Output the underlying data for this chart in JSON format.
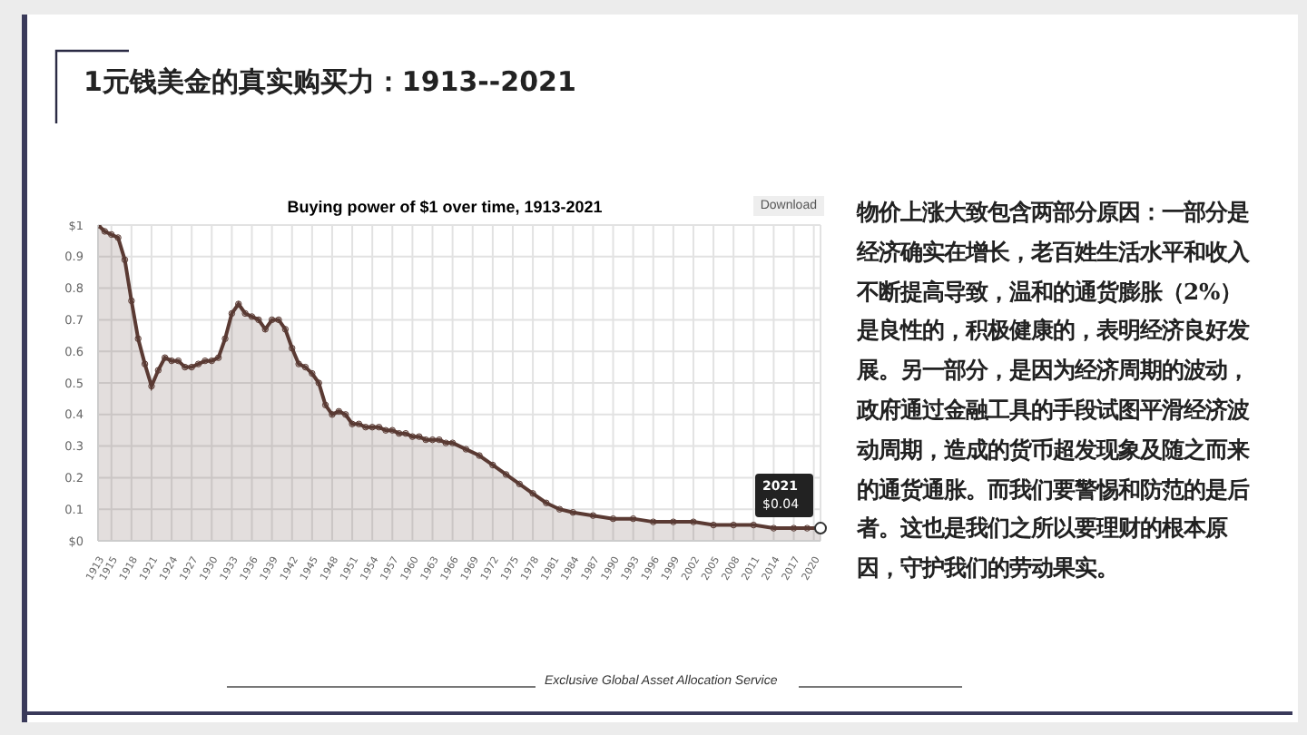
{
  "chart_data": {
    "type": "area",
    "title": "1元钱美金的真实购买力：1913--2021",
    "subtitle": "Buying power of $1 over time, 1913-2021",
    "x": [
      1913,
      1914,
      1915,
      1916,
      1917,
      1918,
      1919,
      1920,
      1921,
      1922,
      1923,
      1924,
      1925,
      1926,
      1927,
      1928,
      1929,
      1930,
      1931,
      1932,
      1933,
      1934,
      1935,
      1936,
      1937,
      1938,
      1939,
      1940,
      1941,
      1942,
      1943,
      1944,
      1945,
      1946,
      1947,
      1948,
      1949,
      1950,
      1951,
      1952,
      1953,
      1954,
      1955,
      1956,
      1957,
      1958,
      1959,
      1960,
      1961,
      1962,
      1963,
      1964,
      1965,
      1966,
      1968,
      1970,
      1972,
      1974,
      1976,
      1978,
      1980,
      1982,
      1984,
      1987,
      1990,
      1993,
      1996,
      1999,
      2002,
      2005,
      2008,
      2011,
      2014,
      2017,
      2019,
      2021
    ],
    "series": [
      {
        "color": "#5a3a33",
        "values": [
          1.0,
          0.98,
          0.97,
          0.96,
          0.89,
          0.76,
          0.64,
          0.56,
          0.49,
          0.54,
          0.58,
          0.57,
          0.57,
          0.55,
          0.55,
          0.56,
          0.57,
          0.57,
          0.58,
          0.64,
          0.72,
          0.75,
          0.72,
          0.71,
          0.7,
          0.67,
          0.7,
          0.7,
          0.67,
          0.61,
          0.56,
          0.55,
          0.53,
          0.5,
          0.43,
          0.4,
          0.41,
          0.4,
          0.37,
          0.37,
          0.36,
          0.36,
          0.36,
          0.35,
          0.35,
          0.34,
          0.34,
          0.33,
          0.33,
          0.32,
          0.32,
          0.32,
          0.31,
          0.31,
          0.29,
          0.27,
          0.24,
          0.21,
          0.18,
          0.15,
          0.12,
          0.1,
          0.09,
          0.08,
          0.07,
          0.07,
          0.06,
          0.06,
          0.06,
          0.05,
          0.05,
          0.05,
          0.04,
          0.04,
          0.04,
          0.04
        ]
      }
    ],
    "xlim": [
      1913,
      2021
    ],
    "xticks": [
      1913,
      1915,
      1918,
      1921,
      1924,
      1927,
      1930,
      1933,
      1936,
      1939,
      1942,
      1945,
      1948,
      1951,
      1954,
      1957,
      1960,
      1963,
      1966,
      1969,
      1972,
      1975,
      1978,
      1981,
      1984,
      1987,
      1990,
      1993,
      1996,
      1999,
      2002,
      2005,
      2008,
      2011,
      2014,
      2017,
      2020
    ],
    "ylim": [
      0,
      1
    ],
    "yticks": [
      {
        "value": 0,
        "label": "$0"
      },
      0.1,
      0.2,
      0.3,
      0.4,
      0.5,
      0.6,
      0.7,
      0.8,
      0.9,
      {
        "value": 1,
        "label": "$1"
      }
    ],
    "grid": true,
    "marker": "circle",
    "annotations": [
      "物价上涨大致包含两部分原因：一部分是经济确实在增长，老百姓生活水平和收入不断提高导致，温和的通货膨胀（2%）是良性的，积极健康的，表明经济良好发展。另一部分，是因为经济周期的波动，政府通过金融工具的手段试图平滑经济波动周期，造成的货币超发现象及随之而来的通货通胀。而我们要警惕和防范的是后者。这也是我们之所以要理财的根本原因，守护我们的劳动果实。",
      "Download",
      "Exclusive Global Asset Allocation Service",
      {
        "text": "2021 $0.04",
        "x": 2021,
        "y": 0.04
      }
    ]
  }
}
